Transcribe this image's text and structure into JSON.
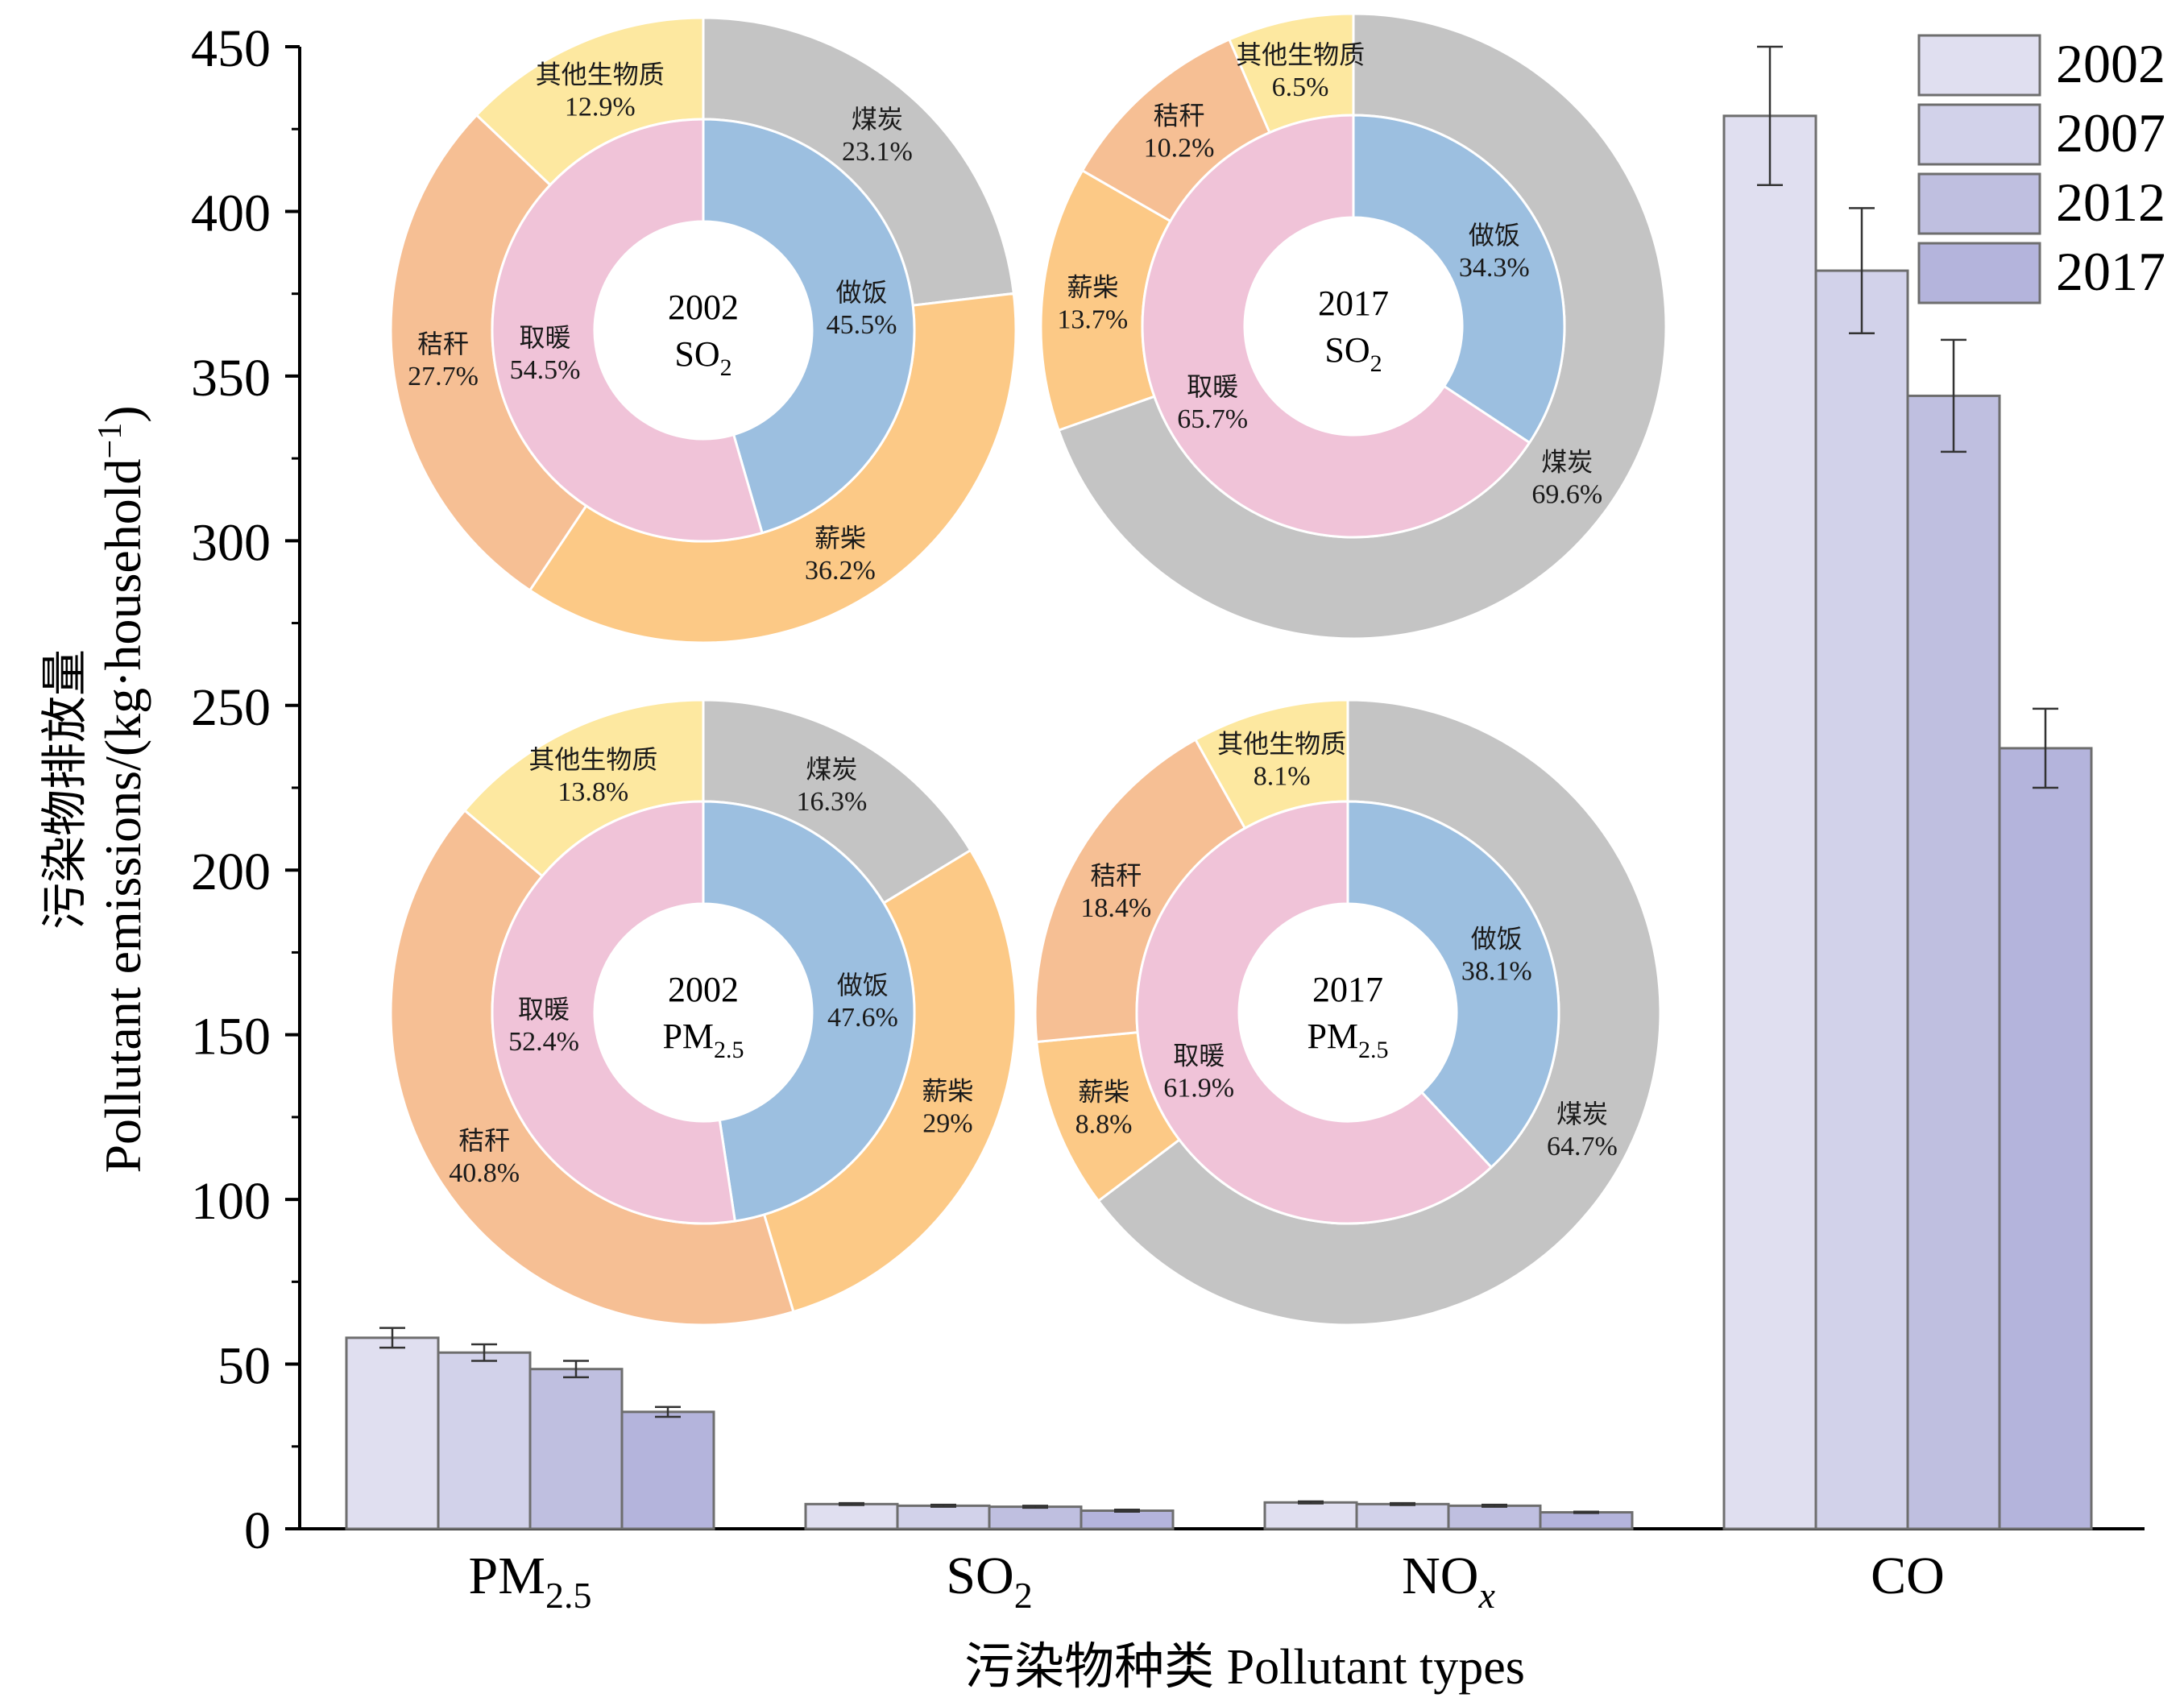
{
  "chart_data": [
    {
      "type": "bar",
      "xlabel": "污染物种类  Pollutant types",
      "ylabel": "污染物排放量",
      "ylabel2": "Pollutant emissions/(kg·household",
      "ylabel_sup": "−1",
      "ylabel_close": ")",
      "ylim": [
        0,
        450
      ],
      "yticks": [
        "0",
        "50",
        "100",
        "150",
        "200",
        "250",
        "300",
        "350",
        "400",
        "450"
      ],
      "categories": [
        {
          "base": "PM",
          "sub": "2.5"
        },
        {
          "base": "SO",
          "sub": "2"
        },
        {
          "base": "NO",
          "sub": "x"
        },
        {
          "base": "CO",
          "sub": ""
        }
      ],
      "legend_position": "top-right",
      "series": [
        {
          "name": "2002",
          "color": "#e0dff0",
          "values": [
            58,
            7.5,
            8,
            429
          ],
          "errors": [
            3,
            0.3,
            0.3,
            21
          ]
        },
        {
          "name": "2007",
          "color": "#d2d2ea",
          "values": [
            53.5,
            7,
            7.5,
            382
          ],
          "errors": [
            2.5,
            0.3,
            0.3,
            19
          ]
        },
        {
          "name": "2012",
          "color": "#bfbfe0",
          "values": [
            48.5,
            6.7,
            7,
            344
          ],
          "errors": [
            2.5,
            0.3,
            0.3,
            17
          ]
        },
        {
          "name": "2017",
          "color": "#b4b4dc",
          "values": [
            35.5,
            5.5,
            5,
            237
          ],
          "errors": [
            1.5,
            0.3,
            0.2,
            12
          ]
        }
      ]
    },
    {
      "type": "pie",
      "center_label": "2002",
      "center_base": "SO",
      "center_sub": "2",
      "start_deg": 0,
      "inner": [
        {
          "name": "做饭",
          "value": 45.5,
          "label": "45.5%",
          "color": "#9cbfe0"
        },
        {
          "name": "取暖",
          "value": 54.5,
          "label": "54.5%",
          "color": "#f0c3d8"
        }
      ],
      "outer": [
        {
          "name": "煤炭",
          "value": 23.1,
          "label": "23.1%",
          "color": "#c4c4c4"
        },
        {
          "name": "薪柴",
          "value": 36.2,
          "label": "36.2%",
          "color": "#fcc986"
        },
        {
          "name": "秸秆",
          "value": 27.7,
          "label": "27.7%",
          "color": "#f6bf94"
        },
        {
          "name": "其他生物质",
          "value": 12.9,
          "label": "12.9%",
          "color": "#fde8a0"
        }
      ]
    },
    {
      "type": "pie",
      "center_label": "2017",
      "center_base": "SO",
      "center_sub": "2",
      "start_deg": 0,
      "inner": [
        {
          "name": "做饭",
          "value": 34.3,
          "label": "34.3%",
          "color": "#9cbfe0"
        },
        {
          "name": "取暖",
          "value": 65.7,
          "label": "65.7%",
          "color": "#f0c3d8"
        }
      ],
      "outer": [
        {
          "name": "煤炭",
          "value": 69.6,
          "label": "69.6%",
          "color": "#c4c4c4"
        },
        {
          "name": "薪柴",
          "value": 13.7,
          "label": "13.7%",
          "color": "#fcc986"
        },
        {
          "name": "秸秆",
          "value": 10.2,
          "label": "10.2%",
          "color": "#f6bf94"
        },
        {
          "name": "其他生物质",
          "value": 6.5,
          "label": "6.5%",
          "color": "#fde8a0"
        }
      ]
    },
    {
      "type": "pie",
      "center_label": "2002",
      "center_base": "PM",
      "center_sub": "2.5",
      "start_deg": 0,
      "inner": [
        {
          "name": "做饭",
          "value": 47.6,
          "label": "47.6%",
          "color": "#9cbfe0"
        },
        {
          "name": "取暖",
          "value": 52.4,
          "label": "52.4%",
          "color": "#f0c3d8"
        }
      ],
      "outer": [
        {
          "name": "煤炭",
          "value": 16.3,
          "label": "16.3%",
          "color": "#c4c4c4"
        },
        {
          "name": "薪柴",
          "value": 29,
          "label": "29%",
          "color": "#fcc986"
        },
        {
          "name": "秸秆",
          "value": 40.8,
          "label": "40.8%",
          "color": "#f6bf94"
        },
        {
          "name": "其他生物质",
          "value": 13.8,
          "label": "13.8%",
          "color": "#fde8a0"
        }
      ]
    },
    {
      "type": "pie",
      "center_label": "2017",
      "center_base": "PM",
      "center_sub": "2.5",
      "start_deg": 0,
      "inner": [
        {
          "name": "做饭",
          "value": 38.1,
          "label": "38.1%",
          "color": "#9cbfe0"
        },
        {
          "name": "取暖",
          "value": 61.9,
          "label": "61.9%",
          "color": "#f0c3d8"
        }
      ],
      "outer": [
        {
          "name": "煤炭",
          "value": 64.7,
          "label": "64.7%",
          "color": "#c4c4c4"
        },
        {
          "name": "薪柴",
          "value": 8.8,
          "label": "8.8%",
          "color": "#fcc986"
        },
        {
          "name": "秸秆",
          "value": 18.4,
          "label": "18.4%",
          "color": "#f6bf94"
        },
        {
          "name": "其他生物质",
          "value": 8.1,
          "label": "8.1%",
          "color": "#fde8a0"
        }
      ]
    }
  ]
}
